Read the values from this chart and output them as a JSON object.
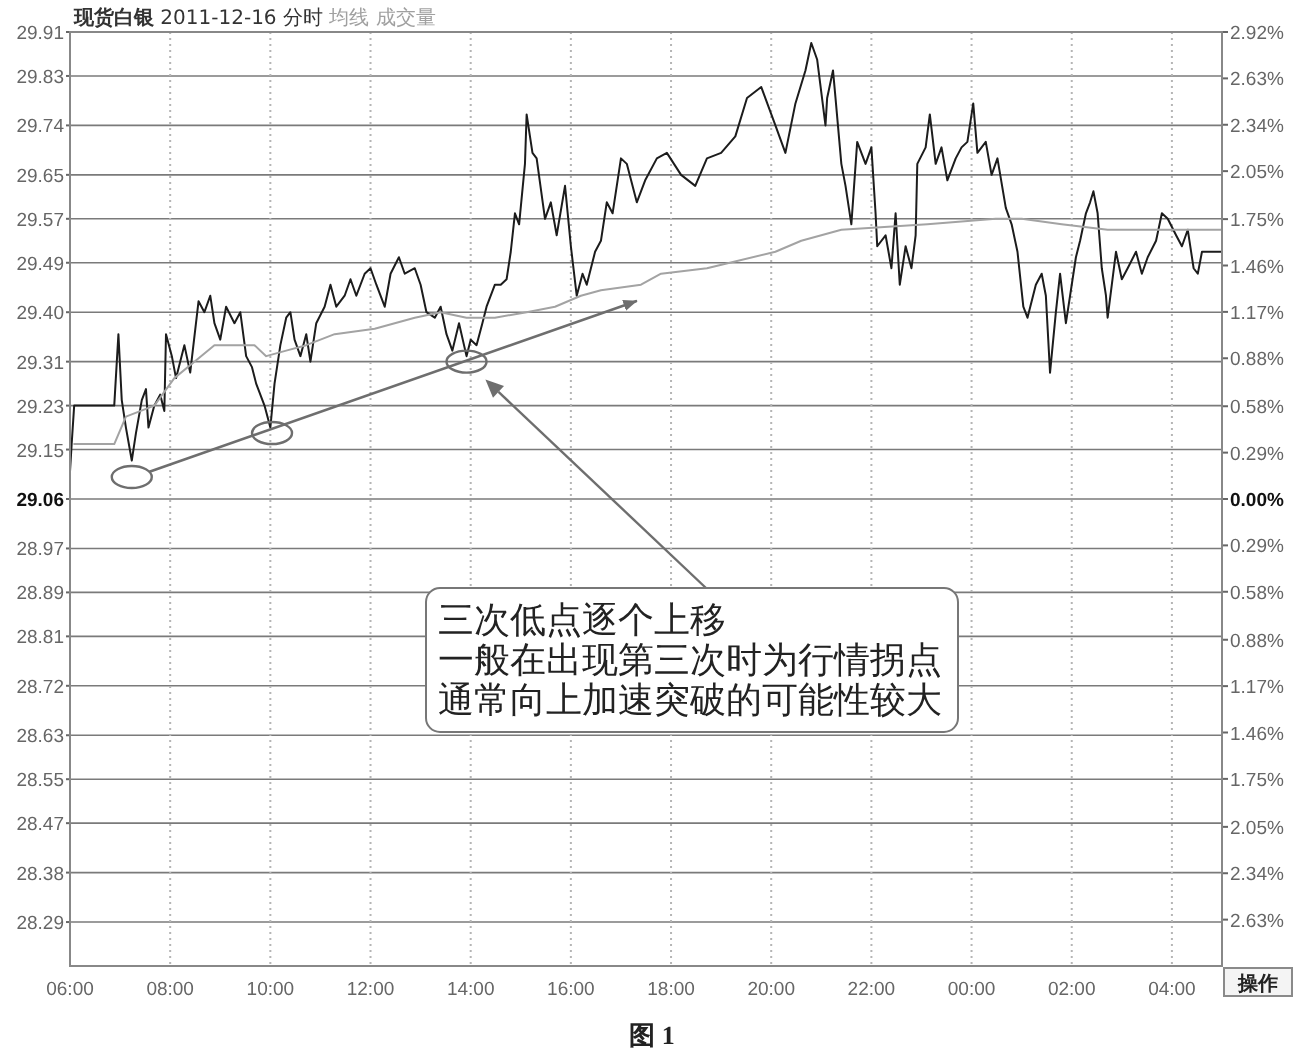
{
  "chart_data": {
    "type": "line",
    "title": "现货白银 2011-12-16 分时 均线 成交量",
    "xlim": [
      "2011-12-16T06:00",
      "2011-12-17T05:00"
    ],
    "xticks": [
      {
        "value": "2011-12-16T06:00",
        "label": "06:00"
      },
      {
        "value": "2011-12-16T08:00",
        "label": "08:00"
      },
      {
        "value": "2011-12-16T10:00",
        "label": "10:00"
      },
      {
        "value": "2011-12-16T12:00",
        "label": "12:00"
      },
      {
        "value": "2011-12-16T14:00",
        "label": "14:00"
      },
      {
        "value": "2011-12-16T16:00",
        "label": "16:00"
      },
      {
        "value": "2011-12-16T18:00",
        "label": "18:00"
      },
      {
        "value": "2011-12-16T20:00",
        "label": "20:00"
      },
      {
        "value": "2011-12-16T22:00",
        "label": "22:00"
      },
      {
        "value": "2011-12-17T00:00",
        "label": "00:00"
      },
      {
        "value": "2011-12-17T02:00",
        "label": "02:00"
      },
      {
        "value": "2011-12-17T04:00",
        "label": "04:00"
      }
    ],
    "ylim": [
      28.21,
      29.91
    ],
    "yticks": [
      29.91,
      29.83,
      29.74,
      29.65,
      29.57,
      29.49,
      {
        "value": 29.4,
        "label": "29.40"
      },
      29.31,
      29.23,
      29.15,
      29.06,
      28.97,
      28.89,
      28.81,
      28.72,
      28.63,
      28.55,
      28.47,
      28.38,
      28.29
    ],
    "y2lim": [
      -2.92,
      2.92
    ],
    "y2ticks": [
      {
        "value": 2.92,
        "label": "2.92%"
      },
      {
        "value": 2.63,
        "label": "2.63%"
      },
      {
        "value": 2.34,
        "label": "2.34%"
      },
      {
        "value": 2.05,
        "label": "2.05%"
      },
      {
        "value": 1.75,
        "label": "1.75%"
      },
      {
        "value": 1.46,
        "label": "1.46%"
      },
      {
        "value": 1.17,
        "label": "1.17%"
      },
      {
        "value": 0.88,
        "label": "0.88%"
      },
      {
        "value": 0.58,
        "label": "0.58%"
      },
      {
        "value": 0.29,
        "label": "0.29%"
      },
      {
        "value": 0,
        "label": "0.00%"
      },
      {
        "value": -0.29,
        "label": "0.29%"
      },
      {
        "value": -0.58,
        "label": "0.58%"
      },
      {
        "value": -0.88,
        "label": "0.88%"
      },
      {
        "value": -1.17,
        "label": "1.17%"
      },
      {
        "value": -1.46,
        "label": "1.46%"
      },
      {
        "value": -1.75,
        "label": "1.75%"
      },
      {
        "value": -2.05,
        "label": "2.05%"
      },
      {
        "value": -2.34,
        "label": "2.34%"
      },
      {
        "value": -2.63,
        "label": "2.63%"
      }
    ],
    "grid": true,
    "series": [
      {
        "color": "#1c1c1c",
        "x": [
          "2011-12-16T06:00",
          "2011-12-16T06:02",
          "2011-12-16T06:05",
          "2011-12-16T06:53",
          "2011-12-16T06:58",
          "2011-12-16T07:02",
          "2011-12-16T07:07",
          "2011-12-16T07:14",
          "2011-12-16T07:19",
          "2011-12-16T07:26",
          "2011-12-16T07:31",
          "2011-12-16T07:34",
          "2011-12-16T07:41",
          "2011-12-16T07:48",
          "2011-12-16T07:53",
          "2011-12-16T07:55",
          "2011-12-16T08:02",
          "2011-12-16T08:07",
          "2011-12-16T08:17",
          "2011-12-16T08:24",
          "2011-12-16T08:34",
          "2011-12-16T08:41",
          "2011-12-16T08:48",
          "2011-12-16T08:53",
          "2011-12-16T09:00",
          "2011-12-16T09:07",
          "2011-12-16T09:17",
          "2011-12-16T09:24",
          "2011-12-16T09:31",
          "2011-12-16T09:38",
          "2011-12-16T09:43",
          "2011-12-16T09:53",
          "2011-12-16T10:00",
          "2011-12-16T10:05",
          "2011-12-16T10:12",
          "2011-12-16T10:19",
          "2011-12-16T10:24",
          "2011-12-16T10:29",
          "2011-12-16T10:36",
          "2011-12-16T10:43",
          "2011-12-16T10:48",
          "2011-12-16T10:55",
          "2011-12-16T11:05",
          "2011-12-16T11:12",
          "2011-12-16T11:19",
          "2011-12-16T11:29",
          "2011-12-16T11:36",
          "2011-12-16T11:43",
          "2011-12-16T11:53",
          "2011-12-16T12:00",
          "2011-12-16T12:07",
          "2011-12-16T12:17",
          "2011-12-16T12:24",
          "2011-12-16T12:34",
          "2011-12-16T12:41",
          "2011-12-16T12:53",
          "2011-12-16T13:00",
          "2011-12-16T13:07",
          "2011-12-16T13:17",
          "2011-12-16T13:24",
          "2011-12-16T13:31",
          "2011-12-16T13:38",
          "2011-12-16T13:46",
          "2011-12-16T13:55",
          "2011-12-16T14:00",
          "2011-12-16T14:07",
          "2011-12-16T14:14",
          "2011-12-16T14:19",
          "2011-12-16T14:29",
          "2011-12-16T14:36",
          "2011-12-16T14:43",
          "2011-12-16T14:48",
          "2011-12-16T14:53",
          "2011-12-16T14:58",
          "2011-12-16T15:05",
          "2011-12-16T15:07",
          "2011-12-16T15:14",
          "2011-12-16T15:19",
          "2011-12-16T15:29",
          "2011-12-16T15:36",
          "2011-12-16T15:43",
          "2011-12-16T15:53",
          "2011-12-16T16:00",
          "2011-12-16T16:07",
          "2011-12-16T16:14",
          "2011-12-16T16:19",
          "2011-12-16T16:29",
          "2011-12-16T16:36",
          "2011-12-16T16:43",
          "2011-12-16T16:50",
          "2011-12-16T17:00",
          "2011-12-16T17:07",
          "2011-12-16T17:19",
          "2011-12-16T17:29",
          "2011-12-16T17:43",
          "2011-12-16T17:55",
          "2011-12-16T18:12",
          "2011-12-16T18:29",
          "2011-12-16T18:43",
          "2011-12-16T19:00",
          "2011-12-16T19:17",
          "2011-12-16T19:31",
          "2011-12-16T19:48",
          "2011-12-16T20:05",
          "2011-12-16T20:17",
          "2011-12-16T20:29",
          "2011-12-16T20:41",
          "2011-12-16T20:48",
          "2011-12-16T20:55",
          "2011-12-16T21:05",
          "2011-12-16T21:07",
          "2011-12-16T21:14",
          "2011-12-16T21:17",
          "2011-12-16T21:24",
          "2011-12-16T21:29",
          "2011-12-16T21:36",
          "2011-12-16T21:43",
          "2011-12-16T21:53",
          "2011-12-16T22:00",
          "2011-12-16T22:05",
          "2011-12-16T22:07",
          "2011-12-16T22:17",
          "2011-12-16T22:24",
          "2011-12-16T22:29",
          "2011-12-16T22:34",
          "2011-12-16T22:41",
          "2011-12-16T22:48",
          "2011-12-16T22:53",
          "2011-12-16T22:55",
          "2011-12-16T23:05",
          "2011-12-16T23:10",
          "2011-12-16T23:17",
          "2011-12-16T23:24",
          "2011-12-16T23:31",
          "2011-12-16T23:41",
          "2011-12-16T23:48",
          "2011-12-16T23:55",
          "2011-12-17T00:02",
          "2011-12-17T00:07",
          "2011-12-17T00:17",
          "2011-12-17T00:24",
          "2011-12-17T00:31",
          "2011-12-17T00:41",
          "2011-12-17T00:48",
          "2011-12-17T00:55",
          "2011-12-17T01:02",
          "2011-12-17T01:07",
          "2011-12-17T01:17",
          "2011-12-17T01:24",
          "2011-12-17T01:29",
          "2011-12-17T01:34",
          "2011-12-17T01:41",
          "2011-12-17T01:46",
          "2011-12-17T01:53",
          "2011-12-17T02:00",
          "2011-12-17T02:05",
          "2011-12-17T02:10",
          "2011-12-17T02:17",
          "2011-12-17T02:22",
          "2011-12-17T02:26",
          "2011-12-17T02:31",
          "2011-12-17T02:36",
          "2011-12-17T02:41",
          "2011-12-17T02:43",
          "2011-12-17T02:53",
          "2011-12-17T03:00",
          "2011-12-17T03:07",
          "2011-12-17T03:17",
          "2011-12-17T03:24",
          "2011-12-17T03:31",
          "2011-12-17T03:41",
          "2011-12-17T03:48",
          "2011-12-17T03:55",
          "2011-12-17T04:05",
          "2011-12-17T04:12",
          "2011-12-17T04:19",
          "2011-12-17T04:26",
          "2011-12-17T04:31",
          "2011-12-17T04:36",
          "2011-12-17T05:00"
        ],
        "values": [
          29.11,
          29.16,
          29.23,
          29.23,
          29.36,
          29.24,
          29.19,
          29.13,
          29.18,
          29.24,
          29.26,
          29.19,
          29.23,
          29.25,
          29.22,
          29.36,
          29.32,
          29.28,
          29.34,
          29.29,
          29.42,
          29.4,
          29.43,
          29.38,
          29.35,
          29.41,
          29.38,
          29.4,
          29.32,
          29.3,
          29.27,
          29.23,
          29.19,
          29.27,
          29.34,
          29.39,
          29.4,
          29.35,
          29.32,
          29.36,
          29.31,
          29.38,
          29.41,
          29.45,
          29.41,
          29.43,
          29.46,
          29.43,
          29.47,
          29.48,
          29.45,
          29.41,
          29.47,
          29.5,
          29.47,
          29.48,
          29.45,
          29.4,
          29.39,
          29.41,
          29.36,
          29.33,
          29.38,
          29.32,
          29.35,
          29.34,
          29.38,
          29.41,
          29.45,
          29.45,
          29.46,
          29.51,
          29.58,
          29.56,
          29.67,
          29.76,
          29.69,
          29.68,
          29.57,
          29.6,
          29.54,
          29.63,
          29.52,
          29.43,
          29.47,
          29.45,
          29.51,
          29.53,
          29.6,
          29.58,
          29.68,
          29.67,
          29.6,
          29.64,
          29.68,
          29.69,
          29.65,
          29.63,
          29.68,
          29.69,
          29.72,
          29.79,
          29.81,
          29.74,
          29.69,
          29.78,
          29.84,
          29.89,
          29.86,
          29.74,
          29.79,
          29.84,
          29.79,
          29.67,
          29.63,
          29.56,
          29.71,
          29.67,
          29.7,
          29.58,
          29.52,
          29.54,
          29.48,
          29.58,
          29.45,
          29.52,
          29.48,
          29.54,
          29.67,
          29.7,
          29.76,
          29.67,
          29.7,
          29.64,
          29.68,
          29.7,
          29.71,
          29.78,
          29.69,
          29.71,
          29.65,
          29.68,
          29.59,
          29.56,
          29.51,
          29.41,
          29.39,
          29.45,
          29.47,
          29.43,
          29.29,
          29.4,
          29.47,
          29.38,
          29.45,
          29.5,
          29.53,
          29.58,
          29.6,
          29.62,
          29.58,
          29.48,
          29.43,
          29.39,
          29.51,
          29.46,
          29.48,
          29.51,
          29.47,
          29.5,
          29.53,
          29.58,
          29.57,
          29.54,
          29.52,
          29.55,
          29.48,
          29.47,
          29.51,
          29.51
        ]
      },
      {
        "color": "#a3a3a3",
        "x": [
          "2011-12-16T06:05",
          "2011-12-16T06:53",
          "2011-12-16T07:07",
          "2011-12-16T07:41",
          "2011-12-16T08:05",
          "2011-12-16T08:29",
          "2011-12-16T08:53",
          "2011-12-16T09:24",
          "2011-12-16T09:41",
          "2011-12-16T09:55",
          "2011-12-16T10:19",
          "2011-12-16T10:43",
          "2011-12-16T11:17",
          "2011-12-16T12:05",
          "2011-12-16T12:53",
          "2011-12-16T13:24",
          "2011-12-16T13:55",
          "2011-12-16T14:29",
          "2011-12-16T15:07",
          "2011-12-16T15:41",
          "2011-12-16T16:12",
          "2011-12-16T16:36",
          "2011-12-16T17:24",
          "2011-12-16T17:48",
          "2011-12-16T18:43",
          "2011-12-16T20:05",
          "2011-12-16T20:36",
          "2011-12-16T21:24",
          "2011-12-16T23:07",
          "2011-12-17T00:29",
          "2011-12-17T01:00",
          "2011-12-17T01:48",
          "2011-12-17T02:43",
          "2011-12-17T04:05",
          "2011-12-17T05:00"
        ],
        "values": [
          29.16,
          29.16,
          29.21,
          29.23,
          29.28,
          29.31,
          29.34,
          29.34,
          29.34,
          29.32,
          29.33,
          29.34,
          29.36,
          29.37,
          29.39,
          29.4,
          29.39,
          29.39,
          29.4,
          29.41,
          29.43,
          29.44,
          29.45,
          29.47,
          29.48,
          29.51,
          29.53,
          29.55,
          29.56,
          29.57,
          29.57,
          29.56,
          29.55,
          29.55,
          29.55
        ]
      },
      {
        "type": "line",
        "color": "#6e6e6e",
        "x": [
          "2011-12-16T07:36",
          "2011-12-16T17:18"
        ],
        "values": [
          29.11,
          29.42
        ]
      },
      {
        "type": "scatter",
        "marker": "circle",
        "color": "#6e6e6e",
        "x": [
          "2011-12-16T07:14",
          "2011-12-16T10:02",
          "2011-12-16T13:55"
        ],
        "values": [
          29.1,
          29.18,
          29.31
        ]
      }
    ],
    "annotations": [
      "三次低点逐个上移",
      "一般在出现第三次时为行情拐点",
      "通常向上加速突破的可能性较大",
      "操作",
      "图 1"
    ]
  }
}
